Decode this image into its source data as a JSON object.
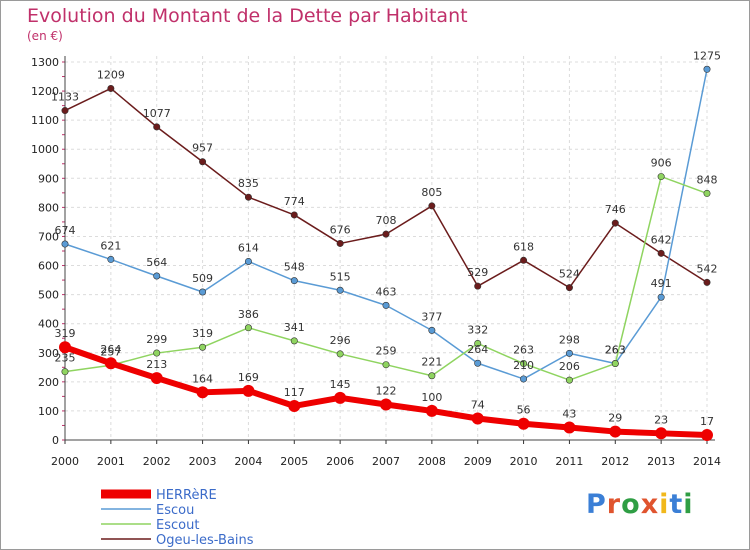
{
  "title": "Evolution du Montant de la Dette par Habitant",
  "subtitle": "(en €)",
  "logo": {
    "text": "Proxiti",
    "letter_colors": [
      "#3b7fd6",
      "#e0542e",
      "#2f9e44",
      "#e0542e",
      "#f1b81b",
      "#3b7fd6",
      "#2f9e44"
    ]
  },
  "chart_data": {
    "type": "line",
    "title": "Evolution du Montant de la Dette par Habitant",
    "ylabel": "(en €)",
    "xlabel": "",
    "x": [
      "2000",
      "2001",
      "2002",
      "2003",
      "2004",
      "2005",
      "2006",
      "2007",
      "2008",
      "2009",
      "2010",
      "2011",
      "2012",
      "2013",
      "2014"
    ],
    "ylim": [
      0,
      1300
    ],
    "yticks": [
      0,
      100,
      200,
      300,
      400,
      500,
      600,
      700,
      800,
      900,
      1000,
      1100,
      1200,
      1300
    ],
    "grid": true,
    "legend_position": "bottom-left",
    "series": [
      {
        "name": "Ogeu-les-Bains",
        "color": "#6b1c1c",
        "values": [
          1133,
          1209,
          1077,
          957,
          835,
          774,
          676,
          708,
          805,
          529,
          618,
          524,
          746,
          642,
          542
        ]
      },
      {
        "name": "Escou",
        "color": "#5a9bd5",
        "values": [
          674,
          621,
          564,
          509,
          614,
          548,
          515,
          463,
          377,
          264,
          210,
          298,
          263,
          491,
          1275
        ]
      },
      {
        "name": "Escout",
        "color": "#8fd460",
        "values": [
          235,
          257,
          299,
          319,
          386,
          341,
          296,
          259,
          221,
          332,
          263,
          206,
          263,
          906,
          848
        ]
      },
      {
        "name": "HERRèRE",
        "color": "#ee0000",
        "values": [
          319,
          264,
          213,
          164,
          169,
          117,
          145,
          122,
          100,
          74,
          56,
          43,
          29,
          23,
          17
        ]
      }
    ]
  }
}
